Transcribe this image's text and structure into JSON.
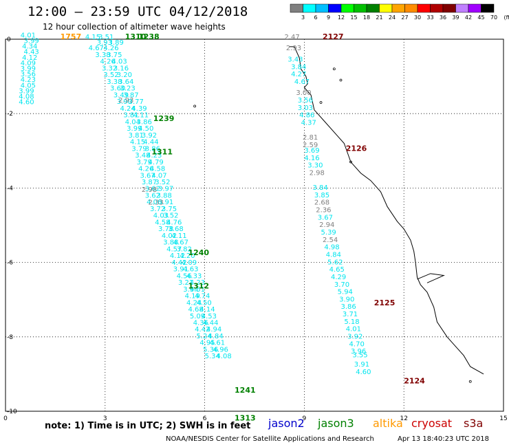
{
  "header": {
    "title": "12:00 – 23:59 UTC 04/12/2018",
    "subtitle": "12 hour collection of altimeter wave heights"
  },
  "colorbar": {
    "labels": [
      "3",
      "6",
      "9",
      "12",
      "15",
      "18",
      "21",
      "24",
      "27",
      "30",
      "33",
      "36",
      "39",
      "42",
      "45",
      "70",
      "(ft)"
    ],
    "colors": [
      "#808080",
      "#00ffff",
      "#00bfff",
      "#0000ff",
      "#00ff00",
      "#00c000",
      "#008000",
      "#ffff00",
      "#ffa500",
      "#ff8c00",
      "#ff0000",
      "#b00000",
      "#800000",
      "#c080ff",
      "#a000ff",
      "#000000"
    ]
  },
  "footer": {
    "note": "note:  1) Time is in UTC; 2) SWH is in feet",
    "credit": "NOAA/NESDIS Center for Satellite Applications and Research",
    "timestamp": "Apr 13 18:40:23 UTC 2018"
  },
  "satellites": [
    {
      "name": "jason2",
      "color": "#0000cc"
    },
    {
      "name": "jason3",
      "color": "#008000"
    },
    {
      "name": "altika",
      "color": "#ff9900"
    },
    {
      "name": "cryosat",
      "color": "#cc0000"
    },
    {
      "name": "s3a",
      "color": "#800000"
    }
  ],
  "chart_data": {
    "type": "scatter",
    "title": "12:00 – 23:59 UTC 04/12/2018",
    "xlim": [
      0,
      15
    ],
    "ylim": [
      -10,
      0
    ],
    "xticks": [
      "0",
      "3",
      "6",
      "9",
      "12",
      "15"
    ],
    "yticks": [
      "0",
      "-2",
      "-4",
      "-6",
      "-8",
      "-10"
    ],
    "time_labels": [
      {
        "text": "1757",
        "x": 1.65,
        "y": 0.0,
        "color": "#ff9900"
      },
      {
        "text": "1310",
        "x": 3.6,
        "y": 0.0,
        "color": "#008000"
      },
      {
        "text": "1238",
        "x": 4.0,
        "y": 0.0,
        "color": "#008000"
      },
      {
        "text": "1239",
        "x": 4.45,
        "y": -2.2,
        "color": "#008000"
      },
      {
        "text": "1311",
        "x": 4.4,
        "y": -3.1,
        "color": "#008000"
      },
      {
        "text": "1240",
        "x": 5.5,
        "y": -5.8,
        "color": "#008000"
      },
      {
        "text": "1312",
        "x": 5.5,
        "y": -6.7,
        "color": "#008000"
      },
      {
        "text": "1241",
        "x": 6.9,
        "y": -9.5,
        "color": "#008000"
      },
      {
        "text": "1313",
        "x": 6.9,
        "y": -10.25,
        "color": "#008000"
      },
      {
        "text": "2127",
        "x": 9.55,
        "y": 0.0,
        "color": "#800000"
      },
      {
        "text": "2126",
        "x": 10.25,
        "y": -3.0,
        "color": "#800000"
      },
      {
        "text": "2125",
        "x": 11.1,
        "y": -7.15,
        "color": "#800000"
      },
      {
        "text": "2124",
        "x": 12.0,
        "y": -9.25,
        "color": "#800000"
      }
    ],
    "series": [
      {
        "name": "1757",
        "color": "#00e5ee",
        "points": [
          [
            "4.01",
            0.45,
            0.05
          ],
          [
            "3.99",
            0.55,
            -0.1
          ],
          [
            "4.34",
            0.5,
            -0.25
          ],
          [
            "4.43",
            0.55,
            -0.4
          ],
          [
            "4.12",
            0.5,
            -0.55
          ],
          [
            "4.09",
            0.45,
            -0.7
          ],
          [
            "3.99",
            0.45,
            -0.85
          ],
          [
            "3.56",
            0.45,
            -1.0
          ],
          [
            "4.23",
            0.45,
            -1.15
          ],
          [
            "4.05",
            0.45,
            -1.3
          ],
          [
            "3.99",
            0.4,
            -1.45
          ],
          [
            "4.08",
            0.4,
            -1.6
          ],
          [
            "4.60",
            0.4,
            -1.75
          ]
        ]
      },
      {
        "name": "1310",
        "color": "#00e5ee",
        "points": [
          [
            "4.15",
            2.4,
            0.0
          ],
          [
            "3.51",
            2.8,
            0.0
          ],
          [
            "3.93",
            2.75,
            -0.15
          ],
          [
            "3.89",
            3.1,
            -0.15
          ],
          [
            "4.67",
            2.5,
            -0.3
          ],
          [
            "4.26",
            2.95,
            -0.3
          ],
          [
            "3.38",
            2.7,
            -0.48
          ],
          [
            "3.75",
            3.05,
            -0.48
          ],
          [
            "4.26",
            2.85,
            -0.66
          ],
          [
            "4.03",
            3.2,
            -0.66
          ],
          [
            "3.32",
            2.9,
            -0.84
          ],
          [
            "3.16",
            3.25,
            -0.84
          ],
          [
            "3.52",
            2.95,
            -1.02
          ],
          [
            "3.20",
            3.35,
            -1.02
          ],
          [
            "3.38",
            3.05,
            -1.2
          ],
          [
            "3.64",
            3.4,
            -1.2
          ],
          [
            "3.60",
            3.15,
            -1.38
          ],
          [
            "3.23",
            3.45,
            -1.38
          ],
          [
            "3.49",
            3.25,
            -1.56
          ],
          [
            "3.87",
            3.55,
            -1.56
          ],
          [
            "3.90",
            3.35,
            -1.74
          ],
          [
            "3.77",
            3.7,
            -1.74
          ],
          [
            "4.24",
            3.45,
            -1.92
          ],
          [
            "4.39",
            3.8,
            -1.92
          ],
          [
            "3.81",
            3.55,
            -2.1
          ],
          [
            "4.11",
            3.85,
            -2.1
          ],
          [
            "4.04",
            3.6,
            -2.28
          ],
          [
            "3.86",
            3.95,
            -2.28
          ],
          [
            "3.99",
            3.65,
            -2.46
          ],
          [
            "4.50",
            4.0,
            -2.46
          ],
          [
            "3.81",
            3.7,
            -2.64
          ],
          [
            "3.92",
            4.1,
            -2.64
          ],
          [
            "4.15",
            3.75,
            -2.82
          ],
          [
            "4.44",
            4.15,
            -2.82
          ],
          [
            "3.79",
            3.8,
            -3.0
          ],
          [
            "3.86",
            4.2,
            -3.0
          ],
          [
            "3.48",
            3.9,
            -3.18
          ],
          [
            "4.23",
            4.25,
            -3.18
          ],
          [
            "3.79",
            3.95,
            -3.36
          ],
          [
            "4.79",
            4.3,
            -3.36
          ],
          [
            "4.26",
            4.0,
            -3.54
          ],
          [
            "4.58",
            4.35,
            -3.54
          ],
          [
            "3.67",
            4.05,
            -3.72
          ],
          [
            "4.07",
            4.4,
            -3.72
          ],
          [
            "3.87",
            4.1,
            -3.9
          ],
          [
            "3.52",
            4.5,
            -3.9
          ],
          [
            "3.62",
            4.2,
            -4.08
          ],
          [
            "3.97",
            4.6,
            -4.08
          ],
          [
            "3.62",
            4.2,
            -4.26
          ],
          [
            "3.88",
            4.55,
            -4.26
          ],
          [
            "4.06",
            4.25,
            -4.44
          ],
          [
            "3.91",
            4.6,
            -4.44
          ],
          [
            "3.72",
            4.35,
            -4.62
          ],
          [
            "3.75",
            4.7,
            -4.62
          ],
          [
            "4.03",
            4.45,
            -4.8
          ],
          [
            "3.52",
            4.75,
            -4.8
          ],
          [
            "4.58",
            4.5,
            -4.98
          ],
          [
            "4.76",
            4.85,
            -4.98
          ],
          [
            "3.78",
            4.6,
            -5.16
          ],
          [
            "3.68",
            4.9,
            -5.16
          ],
          [
            "4.02",
            4.7,
            -5.34
          ],
          [
            "4.11",
            5.0,
            -5.34
          ],
          [
            "3.88",
            4.75,
            -5.52
          ],
          [
            "4.67",
            5.05,
            -5.52
          ],
          [
            "4.57",
            4.85,
            -5.7
          ],
          [
            "3.82",
            5.15,
            -5.7
          ],
          [
            "4.12",
            4.95,
            -5.88
          ],
          [
            "4.20",
            5.25,
            -5.88
          ],
          [
            "4.42",
            5.0,
            -6.06
          ],
          [
            "4.09",
            5.3,
            -6.06
          ],
          [
            "3.91",
            5.05,
            -6.24
          ],
          [
            "4.63",
            5.35,
            -6.24
          ],
          [
            "4.56",
            5.15,
            -6.42
          ],
          [
            "4.33",
            5.45,
            -6.42
          ],
          [
            "3.21",
            5.2,
            -6.6
          ],
          [
            "4.23",
            5.55,
            -6.6
          ],
          [
            "3.94",
            5.35,
            -6.78
          ],
          [
            "4.51",
            5.55,
            -6.78
          ],
          [
            "4.19",
            5.4,
            -6.96
          ],
          [
            "4.74",
            5.7,
            -6.96
          ],
          [
            "4.24",
            5.45,
            -7.14
          ],
          [
            "4.50",
            5.75,
            -7.14
          ],
          [
            "4.68",
            5.5,
            -7.32
          ],
          [
            "4.14",
            5.85,
            -7.32
          ],
          [
            "5.09",
            5.55,
            -7.5
          ],
          [
            "4.53",
            5.9,
            -7.5
          ],
          [
            "4.36",
            5.65,
            -7.68
          ],
          [
            "4.44",
            5.95,
            -7.68
          ],
          [
            "4.42",
            5.7,
            -7.86
          ],
          [
            "4.94",
            6.05,
            -7.86
          ],
          [
            "5.24",
            5.75,
            -8.04
          ],
          [
            "4.84",
            6.1,
            -8.04
          ],
          [
            "4.95",
            5.85,
            -8.22
          ],
          [
            "4.61",
            6.15,
            -8.22
          ],
          [
            "5.36",
            5.95,
            -8.4
          ],
          [
            "4.96",
            6.25,
            -8.4
          ],
          [
            "5.34",
            6.0,
            -8.58
          ],
          [
            "4.08",
            6.35,
            -8.58
          ]
        ]
      },
      {
        "name": "2127",
        "color": "#00e5ee",
        "points": [
          [
            "3.43",
            8.5,
            -0.6
          ],
          [
            "3.84",
            8.6,
            -0.8
          ],
          [
            "4.27",
            8.6,
            -1.0
          ],
          [
            "4.67",
            8.7,
            -1.2
          ],
          [
            "3.56",
            8.8,
            -1.7
          ],
          [
            "3.03",
            8.8,
            -1.9
          ],
          [
            "4.86",
            8.85,
            -2.1
          ],
          [
            "4.37",
            8.9,
            -2.3
          ],
          [
            "3.69",
            9.0,
            -3.05
          ],
          [
            "4.16",
            9.0,
            -3.25
          ],
          [
            "3.30",
            9.1,
            -3.45
          ],
          [
            "3.84",
            9.25,
            -4.05
          ],
          [
            "3.85",
            9.3,
            -4.25
          ],
          [
            "3.67",
            9.4,
            -4.85
          ],
          [
            "5.39",
            9.5,
            -5.25
          ],
          [
            "4.98",
            9.6,
            -5.65
          ],
          [
            "4.84",
            9.65,
            -5.85
          ],
          [
            "5.62",
            9.7,
            -6.05
          ],
          [
            "4.65",
            9.75,
            -6.25
          ],
          [
            "4.29",
            9.8,
            -6.45
          ],
          [
            "3.70",
            9.9,
            -6.65
          ],
          [
            "5.94",
            10.0,
            -6.85
          ],
          [
            "3.90",
            10.05,
            -7.05
          ],
          [
            "3.86",
            10.1,
            -7.25
          ],
          [
            "3.71",
            10.15,
            -7.45
          ],
          [
            "5.18",
            10.2,
            -7.65
          ],
          [
            "4.01",
            10.25,
            -7.85
          ],
          [
            "3.92",
            10.3,
            -8.05
          ],
          [
            "4.70",
            10.35,
            -8.25
          ],
          [
            "3.96",
            10.4,
            -8.45
          ],
          [
            "3.55",
            10.45,
            -8.55
          ],
          [
            "3.91",
            10.5,
            -8.8
          ],
          [
            "4.60",
            10.55,
            -9.0
          ]
        ]
      },
      {
        "name": "1239",
        "color": "#808080",
        "points": [
          [
            "2.93",
            3.4,
            -1.7
          ],
          [
            "2.47",
            8.4,
            0.0
          ],
          [
            "2.93",
            8.45,
            -0.3
          ],
          [
            "3.00",
            8.75,
            -1.5
          ],
          [
            "2.81",
            8.95,
            -2.7
          ],
          [
            "2.59",
            8.95,
            -2.9
          ],
          [
            "2.98",
            9.15,
            -3.65
          ],
          [
            "2.68",
            9.3,
            -4.45
          ],
          [
            "2.36",
            9.35,
            -4.65
          ],
          [
            "2.94",
            9.45,
            -5.05
          ],
          [
            "2.54",
            9.55,
            -5.45
          ],
          [
            "2.98",
            4.1,
            -4.1
          ],
          [
            "2.33",
            4.3,
            -4.45
          ]
        ]
      }
    ]
  }
}
